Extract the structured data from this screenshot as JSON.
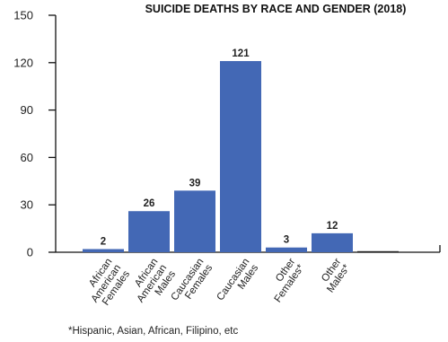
{
  "chart_data": {
    "type": "bar",
    "title": "SUICIDE DEATHS BY RACE AND GENDER (2018)",
    "xlabel": "",
    "ylabel": "",
    "ylim": [
      0,
      150
    ],
    "yticks": [
      0,
      30,
      60,
      90,
      120,
      150
    ],
    "categories": [
      [
        "African",
        "American",
        "Females"
      ],
      [
        "African",
        "American",
        "Males"
      ],
      [
        "Caucasian",
        "Females"
      ],
      [
        "Caucasian",
        "Males"
      ],
      [
        "Other",
        "Females*"
      ],
      [
        "Other",
        "Males*"
      ],
      [
        ""
      ]
    ],
    "values": [
      2,
      26,
      39,
      121,
      3,
      12,
      0
    ],
    "data_labels": [
      "2",
      "26",
      "39",
      "121",
      "3",
      "12",
      ""
    ],
    "bar_color": "#4368b5",
    "grid": false,
    "legend": "none"
  },
  "footnote": "*Hispanic, Asian, African, Filipino, etc"
}
